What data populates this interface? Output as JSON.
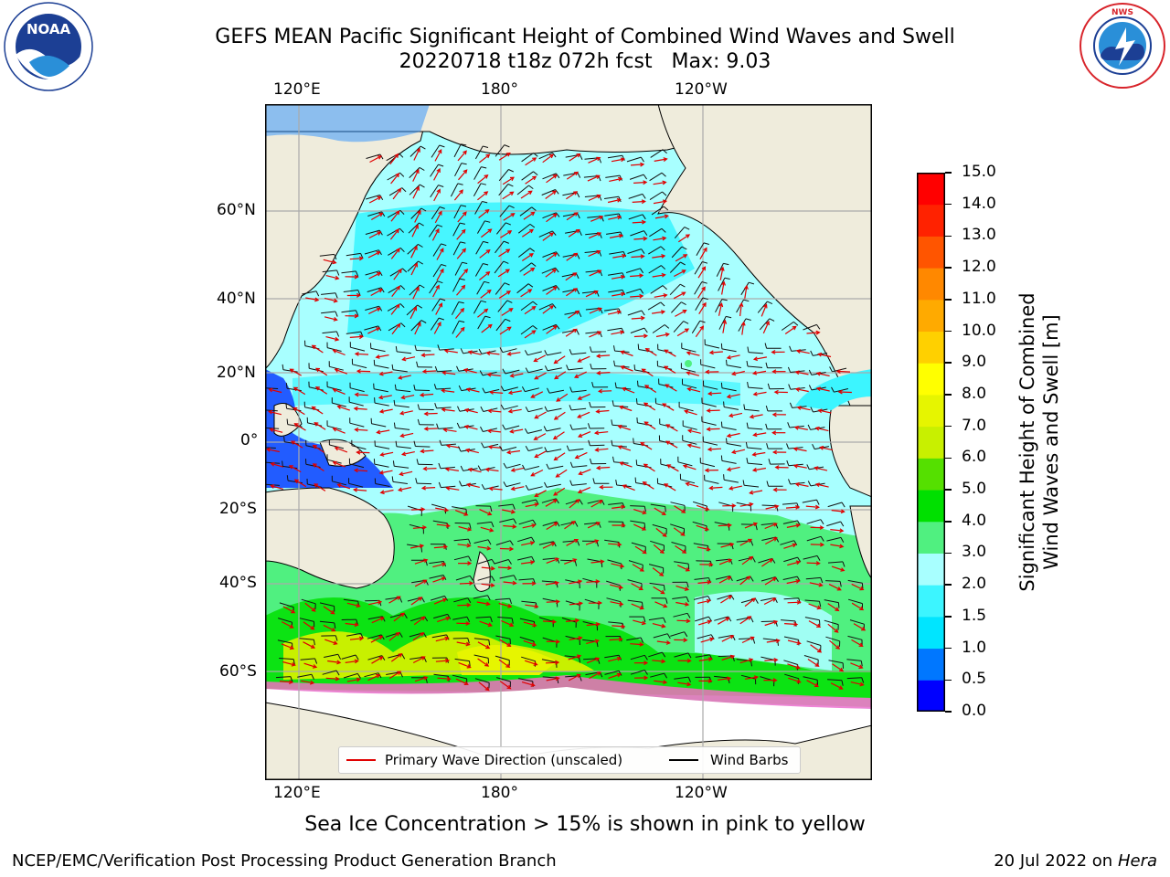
{
  "title": {
    "line1": "GEFS MEAN Pacific Significant Height of Combined Wind Waves and Swell",
    "line2": "20220718 t18z 072h fcst   Max: 9.03"
  },
  "logos": {
    "left": {
      "name": "NOAA",
      "ring_text": "NATIONAL OCEANIC AND ATMOSPHERIC ADMINISTRATION · U.S. DEPARTMENT OF COMMERCE"
    },
    "right": {
      "ring_text": "NATIONAL WEATHER SERVICE"
    }
  },
  "axes": {
    "top_ticks": [
      "120°E",
      "180°",
      "120°W"
    ],
    "bottom_ticks": [
      "120°E",
      "180°",
      "120°W"
    ],
    "left_ticks": [
      "60°N",
      "40°N",
      "20°N",
      "0°",
      "20°S",
      "40°S",
      "60°S"
    ]
  },
  "legend": {
    "wave_dir": "Primary Wave Direction (unscaled)",
    "wind_barbs": "Wind Barbs"
  },
  "colorbar": {
    "label_line1": "Significant Height of Combined",
    "label_line2": "Wind Waves and Swell [m]",
    "ticks": [
      "0.0",
      "0.5",
      "1.0",
      "1.5",
      "2.0",
      "3.0",
      "4.0",
      "5.0",
      "6.0",
      "7.0",
      "8.0",
      "9.0",
      "10.0",
      "11.0",
      "12.0",
      "13.0",
      "14.0",
      "15.0"
    ],
    "colors": [
      "#0000ff",
      "#0077ff",
      "#00e5ff",
      "#3cf5ff",
      "#a8ffff",
      "#50f080",
      "#00e000",
      "#55e000",
      "#c8f000",
      "#e6f500",
      "#ffff00",
      "#ffd000",
      "#ffaa00",
      "#ff8800",
      "#ff5500",
      "#ff2200",
      "#ff0000"
    ]
  },
  "ice_note": "Sea Ice Concentration > 15% is shown in pink to yellow",
  "footer": {
    "left": "NCEP/EMC/Verification Post Processing Product Generation Branch",
    "right_prefix": "20 Jul 2022 on ",
    "right_host": "Hera"
  }
}
